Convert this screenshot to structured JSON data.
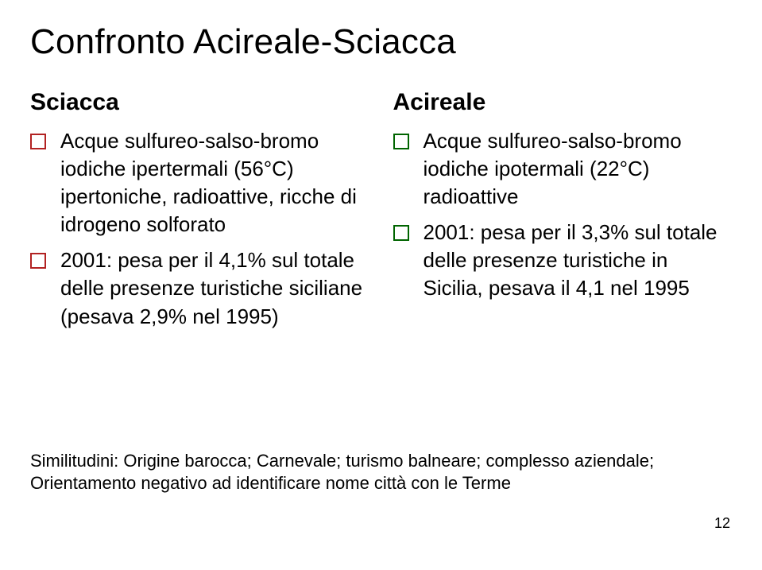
{
  "title": "Confronto Acireale-Sciacca",
  "columns": {
    "left": {
      "heading": "Sciacca",
      "bullet_color": "#b22222",
      "items": [
        "Acque sulfureo-salso-bromo iodiche ipertermali (56°C) ipertoniche, radioattive, ricche di idrogeno solforato",
        "2001: pesa per il 4,1% sul totale delle presenze turistiche siciliane (pesava 2,9% nel 1995)"
      ]
    },
    "right": {
      "heading": "Acireale",
      "bullet_color": "#006400",
      "items": [
        "Acque sulfureo-salso-bromo iodiche ipotermali (22°C) radioattive",
        "2001: pesa per il 3,3% sul totale delle presenze turistiche in Sicilia, pesava il 4,1 nel 1995"
      ]
    }
  },
  "footnote_line1": "Similitudini: Origine barocca; Carnevale; turismo balneare; complesso aziendale;",
  "footnote_line2": "Orientamento negativo ad identificare nome città con le Terme",
  "page_number": "12",
  "colors": {
    "background": "#ffffff",
    "text": "#000000",
    "left_bullet": "#b22222",
    "right_bullet": "#006400"
  },
  "typography": {
    "title_fontsize": 44,
    "heading_fontsize": 30,
    "body_fontsize": 26,
    "footnote_fontsize": 22,
    "pagenum_fontsize": 18,
    "font_family": "Verdana"
  }
}
